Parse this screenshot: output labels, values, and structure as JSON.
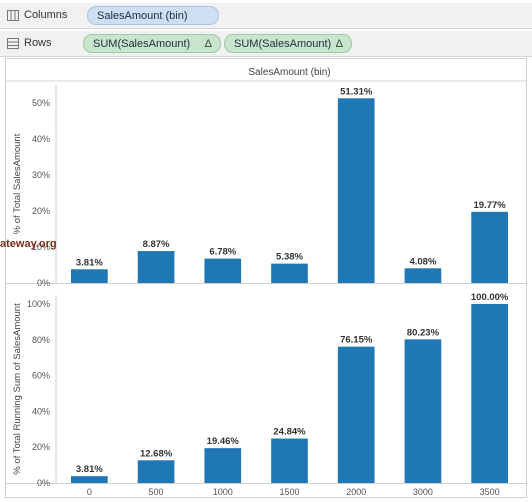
{
  "shelves": {
    "columns": {
      "label": "Columns",
      "pills": [
        {
          "text": "SalesAmount (bin)",
          "kind": "dimension"
        }
      ]
    },
    "rows": {
      "label": "Rows",
      "pills": [
        {
          "text": "SUM(SalesAmount)",
          "delta": "Δ",
          "kind": "measure"
        },
        {
          "text": "SUM(SalesAmount)",
          "delta": "Δ",
          "kind": "measure"
        }
      ]
    }
  },
  "watermark": "ateway.org",
  "colors": {
    "bar": "#1f77b4",
    "dimension_pill": "#cde0f3",
    "measure_pill": "#c8e6cd"
  },
  "chart_data": [
    {
      "type": "bar",
      "title": "SalesAmount (bin)",
      "ylabel": "% of Total SalesAmount",
      "categories": [
        "0",
        "500",
        "1000",
        "1500",
        "2000",
        "3000",
        "3500"
      ],
      "values": [
        3.81,
        8.87,
        6.78,
        5.38,
        51.31,
        4.08,
        19.77
      ],
      "value_labels": [
        "3.81%",
        "8.87%",
        "6.78%",
        "5.38%",
        "51.31%",
        "4.08%",
        "19.77%"
      ],
      "ylim": [
        0,
        55
      ],
      "yticks": [
        0,
        10,
        20,
        30,
        40,
        50
      ],
      "ytick_labels": [
        "0%",
        "10%",
        "20%",
        "30%",
        "40%",
        "50%"
      ],
      "grid": false
    },
    {
      "type": "bar",
      "ylabel": "% of Total Running Sum of SalesAmount",
      "categories": [
        "0",
        "500",
        "1000",
        "1500",
        "2000",
        "3000",
        "3500"
      ],
      "values": [
        3.81,
        12.68,
        19.46,
        24.84,
        76.15,
        80.23,
        100.0
      ],
      "value_labels": [
        "3.81%",
        "12.68%",
        "19.46%",
        "24.84%",
        "76.15%",
        "80.23%",
        "100.00%"
      ],
      "ylim": [
        0,
        105
      ],
      "yticks": [
        0,
        20,
        40,
        60,
        80,
        100
      ],
      "ytick_labels": [
        "0%",
        "20%",
        "40%",
        "60%",
        "80%",
        "100%"
      ],
      "xtick_labels": [
        "0",
        "500",
        "1000",
        "1500",
        "2000",
        "3000",
        "3500"
      ],
      "grid": false
    }
  ]
}
